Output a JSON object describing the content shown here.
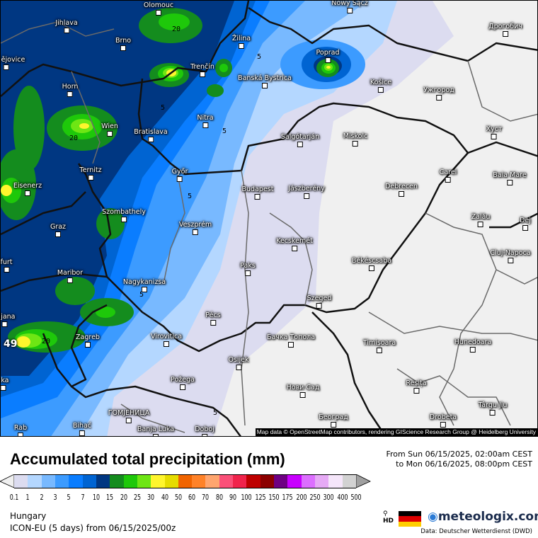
{
  "map": {
    "cities": [
      "Olomouc",
      "Jihlava",
      "Brno",
      "Žilina",
      "Trenčín",
      "Banská Bystrica",
      "ské ějovice",
      "Horn",
      "Wien",
      "Bratislava",
      "Nitra",
      "Győr",
      "Ternitz",
      "Eisenerz",
      "Budapest",
      "Szombathely",
      "Graz",
      "Veszprém",
      "furt",
      "Maribor",
      "Nagykanizsa",
      "Paks",
      "pljana",
      "Pécs",
      "Zagreb",
      "Virovitica",
      "Osijek",
      "eka",
      "Požega",
      "ГОМЈЕНИЦА",
      "Bihać",
      "Rab",
      "Banja Luka",
      "Doboj",
      "Nowy Sącz",
      "Poprad",
      "Košice",
      "Ужгород",
      "Дрогобич",
      "Salgótarján",
      "Miskolc",
      "Jászberény",
      "Debrecen",
      "Carei",
      "Baia Mare",
      "Хуст",
      "Zalău",
      "Dej",
      "Cluj-Napoca",
      "Kecskemét",
      "Békéscsaba",
      "Szeged",
      "Бачка Топола",
      "Timișoara",
      "Hunedoara",
      "Reșița",
      "Târgu Jiu",
      "Нови Сад",
      "Београд",
      "Drobeta"
    ],
    "contour_labels": [
      "20",
      "20",
      "5",
      "5",
      "5",
      "5",
      "5",
      "20",
      "5"
    ],
    "max_value": "49",
    "attribution": "Map data © OpenStreetMap contributors, rendering GIScience Research Group @ Heidelberg University"
  },
  "header": {
    "title": "Accumulated total precipitation (mm)",
    "period_from": "From Sun 06/15/2025, 02:00am CEST",
    "period_to": "to Mon 06/16/2025, 08:00pm CEST"
  },
  "legend": {
    "labels": [
      "0.1",
      "1",
      "2",
      "3",
      "5",
      "7",
      "10",
      "15",
      "20",
      "25",
      "30",
      "40",
      "50",
      "60",
      "70",
      "80",
      "90",
      "100",
      "125",
      "150",
      "175",
      "200",
      "250",
      "300",
      "400",
      "500"
    ],
    "colors": [
      "#dcdcf0",
      "#b4d7ff",
      "#78b9ff",
      "#3c9bff",
      "#0a7dff",
      "#0064d2",
      "#003782",
      "#148c1e",
      "#1ec80a",
      "#6ee614",
      "#fff52d",
      "#e6dc00",
      "#f06400",
      "#ff8228",
      "#ffa56e",
      "#fa5078",
      "#f0234b",
      "#be0000",
      "#8c0000",
      "#6e0082",
      "#c800ff",
      "#dc6eff",
      "#e6aaf5",
      "#f5e6fa",
      "#d2d2d2"
    ],
    "low_arrow_color": "#f0f0f0",
    "high_arrow_color": "#a0a0a0"
  },
  "footer": {
    "region": "Hungary",
    "model": "ICON-EU (5 days) from  06/15/2025/00z",
    "hd_label": "HD",
    "logo": "meteologix.com",
    "source": "Data: Deutscher Wetterdienst  (DWD)"
  }
}
